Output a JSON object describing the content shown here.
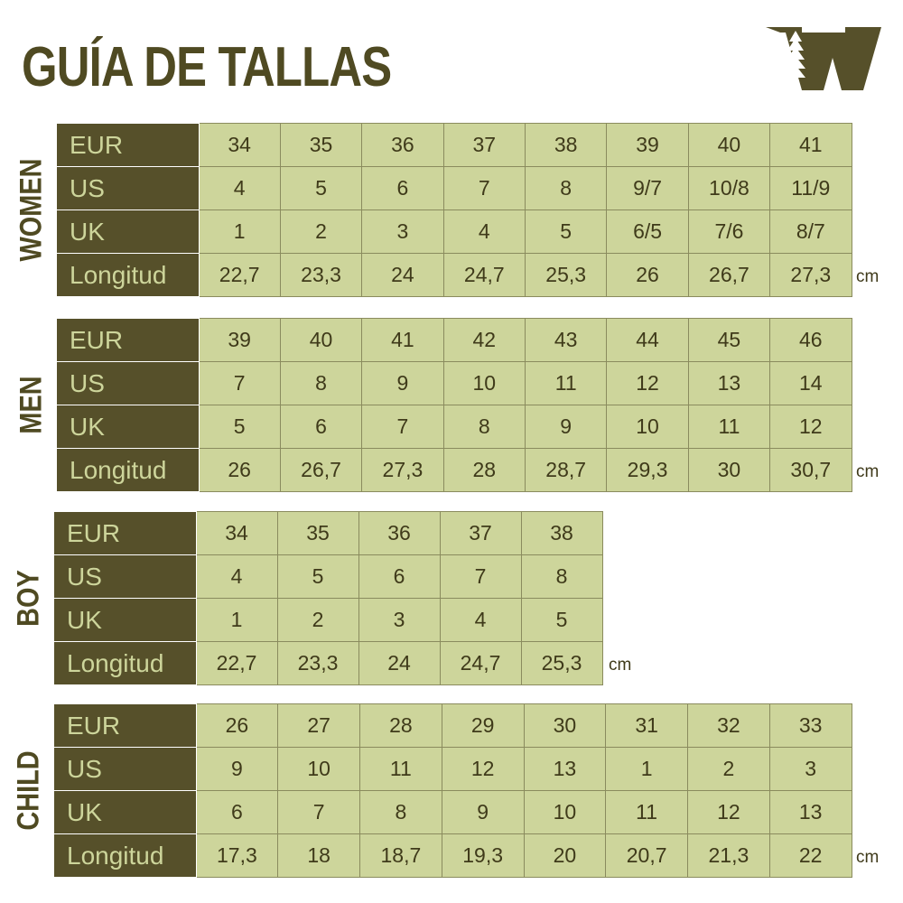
{
  "title": "GUÍA DE TALLAS",
  "brand_color": "#56502a",
  "cell_color": "#cdd59b",
  "unit": "cm",
  "sections": [
    {
      "label": "WOMEN",
      "rows": [
        {
          "head": "EUR",
          "values": [
            "34",
            "35",
            "36",
            "37",
            "38",
            "39",
            "40",
            "41"
          ]
        },
        {
          "head": "US",
          "values": [
            "4",
            "5",
            "6",
            "7",
            "8",
            "9/7",
            "10/8",
            "11/9"
          ]
        },
        {
          "head": "UK",
          "values": [
            "1",
            "2",
            "3",
            "4",
            "5",
            "6/5",
            "7/6",
            "8/7"
          ]
        },
        {
          "head": "Longitud",
          "values": [
            "22,7",
            "23,3",
            "24",
            "24,7",
            "25,3",
            "26",
            "26,7",
            "27,3"
          ]
        }
      ]
    },
    {
      "label": "MEN",
      "rows": [
        {
          "head": "EUR",
          "values": [
            "39",
            "40",
            "41",
            "42",
            "43",
            "44",
            "45",
            "46"
          ]
        },
        {
          "head": "US",
          "values": [
            "7",
            "8",
            "9",
            "10",
            "11",
            "12",
            "13",
            "14"
          ]
        },
        {
          "head": "UK",
          "values": [
            "5",
            "6",
            "7",
            "8",
            "9",
            "10",
            "11",
            "12"
          ]
        },
        {
          "head": "Longitud",
          "values": [
            "26",
            "26,7",
            "27,3",
            "28",
            "28,7",
            "29,3",
            "30",
            "30,7"
          ]
        }
      ]
    },
    {
      "label": "BOY",
      "rows": [
        {
          "head": "EUR",
          "values": [
            "34",
            "35",
            "36",
            "37",
            "38"
          ]
        },
        {
          "head": "US",
          "values": [
            "4",
            "5",
            "6",
            "7",
            "8"
          ]
        },
        {
          "head": "UK",
          "values": [
            "1",
            "2",
            "3",
            "4",
            "5"
          ]
        },
        {
          "head": "Longitud",
          "values": [
            "22,7",
            "23,3",
            "24",
            "24,7",
            "25,3"
          ]
        }
      ]
    },
    {
      "label": "CHILD",
      "rows": [
        {
          "head": "EUR",
          "values": [
            "26",
            "27",
            "28",
            "29",
            "30",
            "31",
            "32",
            "33"
          ]
        },
        {
          "head": "US",
          "values": [
            "9",
            "10",
            "11",
            "12",
            "13",
            "1",
            "2",
            "3"
          ]
        },
        {
          "head": "UK",
          "values": [
            "6",
            "7",
            "8",
            "9",
            "10",
            "11",
            "12",
            "13"
          ]
        },
        {
          "head": "Longitud",
          "values": [
            "17,3",
            "18",
            "18,7",
            "19,3",
            "20",
            "20,7",
            "21,3",
            "22"
          ]
        }
      ]
    }
  ]
}
